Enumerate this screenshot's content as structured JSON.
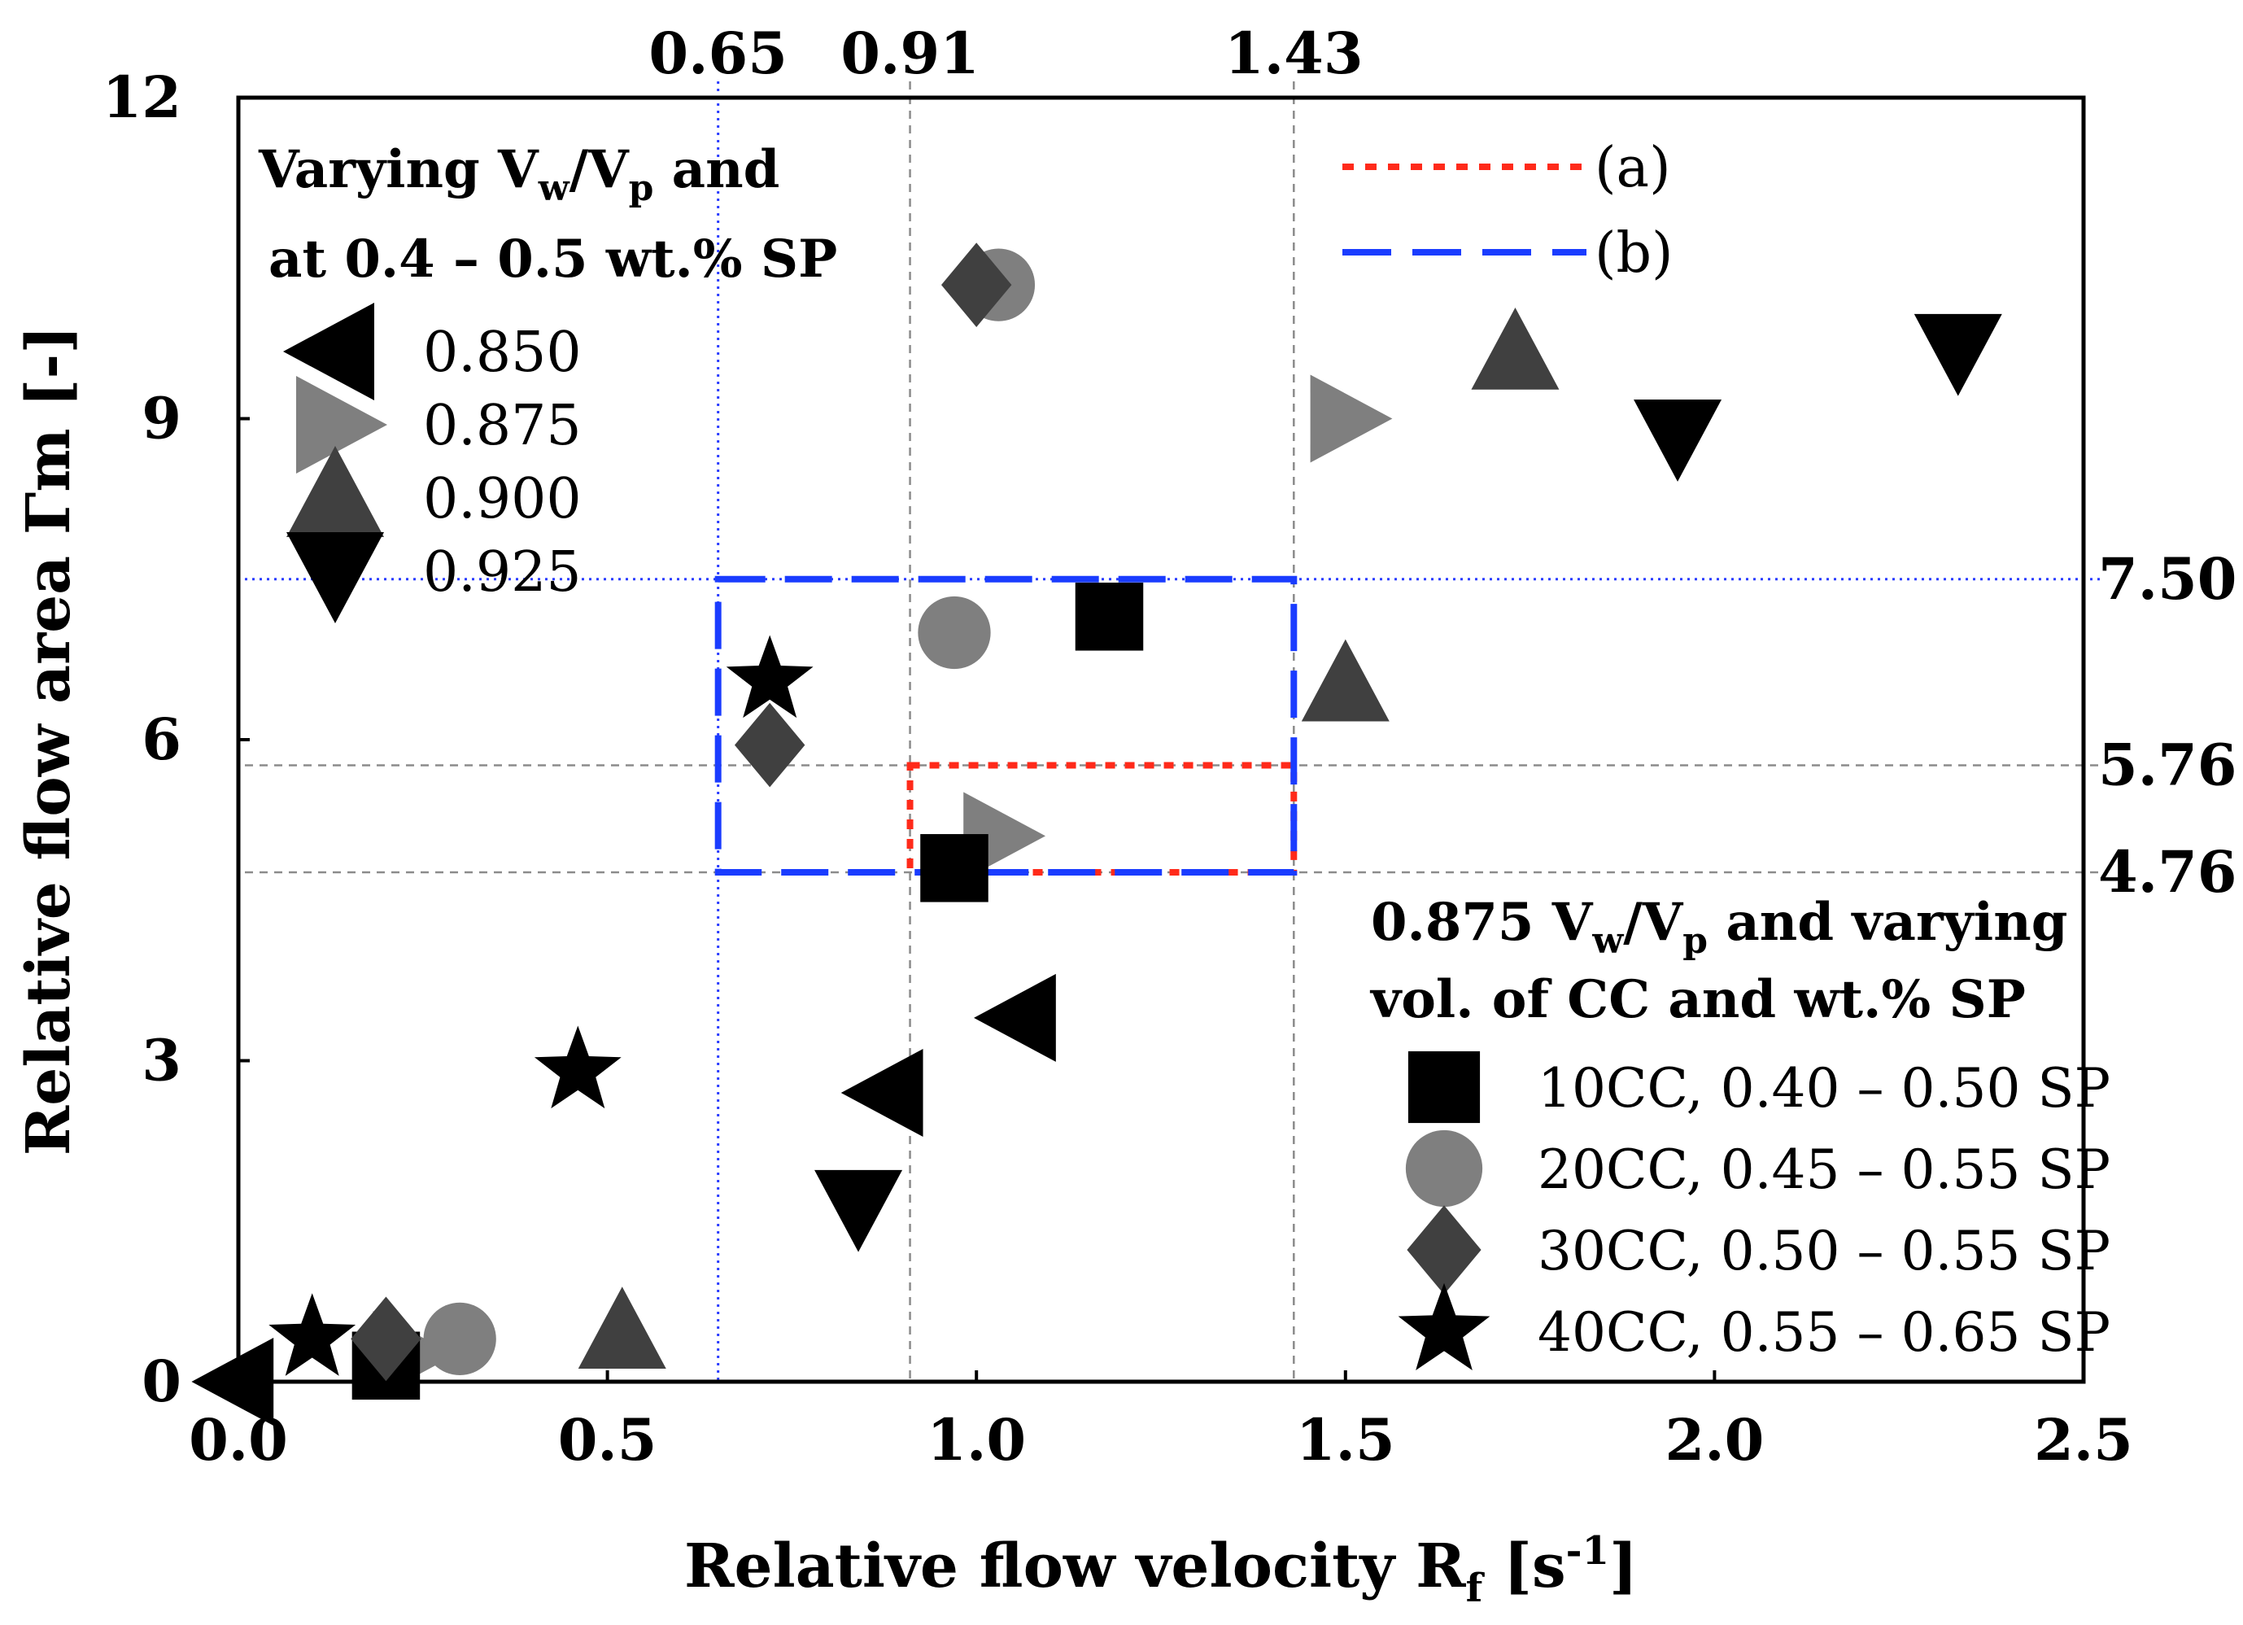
{
  "chart_data": {
    "type": "scatter",
    "title": "",
    "xlabel": "Relative flow velocity",
    "xlabel_symbol": "R",
    "xlabel_sub": "f",
    "xlabel_unit_open": " [s",
    "xlabel_unit_sup": "-1",
    "xlabel_unit_close": "]",
    "ylabel": "Relative flow area Γm [-]",
    "xlim": [
      0,
      2.5
    ],
    "ylim": [
      0,
      12
    ],
    "x_ticks": [
      {
        "value": 0.0,
        "label": "0.0"
      },
      {
        "value": 0.5,
        "label": "0.5"
      },
      {
        "value": 1.0,
        "label": "1.0"
      },
      {
        "value": 1.5,
        "label": "1.5"
      },
      {
        "value": 2.0,
        "label": "2.0"
      },
      {
        "value": 2.5,
        "label": "2.5"
      }
    ],
    "y_ticks": [
      {
        "value": 0,
        "label": "0"
      },
      {
        "value": 3,
        "label": "3"
      },
      {
        "value": 6,
        "label": "6"
      },
      {
        "value": 9,
        "label": "9"
      },
      {
        "value": 12,
        "label": "12"
      }
    ],
    "top_ticks": [
      {
        "value": 0.65,
        "label": "0.65"
      },
      {
        "value": 0.91,
        "label": "0.91"
      },
      {
        "value": 1.43,
        "label": "1.43"
      }
    ],
    "right_ticks": [
      {
        "value": 7.5,
        "label": "7.50"
      },
      {
        "value": 5.76,
        "label": "5.76"
      },
      {
        "value": 4.76,
        "label": "4.76"
      }
    ],
    "reference_lines": [
      {
        "axis": "x",
        "value": 0.65,
        "style": "dotted",
        "color": "#2a3cff"
      },
      {
        "axis": "x",
        "value": 0.91,
        "style": "dashed",
        "color": "#8c8c8c"
      },
      {
        "axis": "x",
        "value": 1.43,
        "style": "dashed",
        "color": "#8c8c8c"
      },
      {
        "axis": "y",
        "value": 7.5,
        "style": "dotted",
        "color": "#2a3cff"
      },
      {
        "axis": "y",
        "value": 5.76,
        "style": "dashed",
        "color": "#8c8c8c"
      },
      {
        "axis": "y",
        "value": 4.76,
        "style": "dashed",
        "color": "#8c8c8c"
      }
    ],
    "regions": [
      {
        "name": "(a)",
        "x": [
          0.91,
          1.43
        ],
        "y": [
          4.76,
          5.76
        ],
        "color": "#ff2a1a",
        "style": "dotted"
      },
      {
        "name": "(b)",
        "x": [
          0.65,
          1.43
        ],
        "y": [
          4.76,
          7.5
        ],
        "color": "#1a3cff",
        "style": "dashed"
      }
    ],
    "legend_top": {
      "title_line1_a": "Varying V",
      "title_line1_sub1": "w",
      "title_line1_b": "/V",
      "title_line1_sub2": "p",
      "title_line1_c": " and",
      "title_line2": "at 0.4 – 0.5 wt.% SP",
      "placement": "top-left"
    },
    "legend_bottom": {
      "title_line1_a": "0.875 V",
      "title_line1_sub1": "w",
      "title_line1_b": "/V",
      "title_line1_sub2": "p",
      "title_line1_c": " and varying",
      "title_line2": "vol. of CC and wt.% SP",
      "placement": "bottom-right"
    },
    "legend_regions": {
      "placement": "top-right"
    },
    "series": [
      {
        "name": "0.850",
        "group": "top",
        "marker": "triangle-left",
        "color": "#000000",
        "points": [
          [
            0.0,
            0.0
          ],
          [
            0.88,
            2.7
          ],
          [
            1.06,
            3.4
          ]
        ]
      },
      {
        "name": "0.875",
        "group": "top",
        "marker": "triangle-right",
        "color": "#7f7f7f",
        "points": [
          [
            0.23,
            0.25
          ],
          [
            1.03,
            5.1
          ],
          [
            1.5,
            9.0
          ]
        ]
      },
      {
        "name": "0.900",
        "group": "top",
        "marker": "triangle-up",
        "color": "#404040",
        "points": [
          [
            0.52,
            0.45
          ],
          [
            1.5,
            6.5
          ],
          [
            1.73,
            9.6
          ]
        ]
      },
      {
        "name": "0.925",
        "group": "top",
        "marker": "triangle-down",
        "color": "#000000",
        "points": [
          [
            0.84,
            1.65
          ],
          [
            1.95,
            8.85
          ],
          [
            2.33,
            9.65
          ]
        ]
      },
      {
        "name": "10CC, 0.40 – 0.50 SP",
        "group": "bottom",
        "marker": "square",
        "color": "#000000",
        "points": [
          [
            0.2,
            0.15
          ],
          [
            0.97,
            4.8
          ],
          [
            1.18,
            7.15
          ]
        ]
      },
      {
        "name": "20CC, 0.45 – 0.55 SP",
        "group": "bottom",
        "marker": "circle",
        "color": "#7f7f7f",
        "points": [
          [
            0.3,
            0.4
          ],
          [
            0.97,
            7.0
          ],
          [
            1.03,
            10.25
          ]
        ]
      },
      {
        "name": "30CC, 0.50 – 0.55 SP",
        "group": "bottom",
        "marker": "diamond",
        "color": "#404040",
        "points": [
          [
            0.2,
            0.4
          ],
          [
            0.72,
            5.95
          ],
          [
            1.0,
            10.25
          ]
        ]
      },
      {
        "name": "40CC, 0.55 – 0.65 SP",
        "group": "bottom",
        "marker": "star",
        "color": "#000000",
        "points": [
          [
            0.1,
            0.4
          ],
          [
            0.46,
            2.9
          ],
          [
            0.72,
            6.55
          ]
        ]
      }
    ]
  }
}
